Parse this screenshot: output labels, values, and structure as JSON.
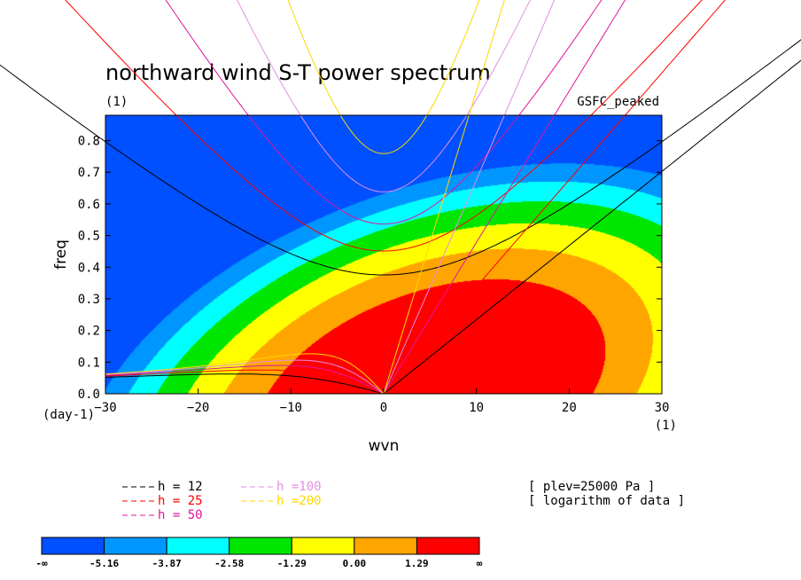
{
  "chart_data": {
    "type": "heatmap",
    "title": "northward wind S-T power spectrum",
    "subtitle_left": "(1)",
    "subtitle_right": "GSFC_peaked",
    "xlabel": "wvn",
    "ylabel": "freq",
    "x_unit": "(1)",
    "y_unit": "(day-1)",
    "xlim": [
      -30,
      30
    ],
    "ylim": [
      0,
      0.88
    ],
    "x_ticks": [
      -30,
      -20,
      -10,
      0,
      10,
      20,
      30
    ],
    "y_ticks": [
      0.0,
      0.1,
      0.2,
      0.3,
      0.4,
      0.5,
      0.6,
      0.7,
      0.8
    ],
    "contour_levels": [
      -5.16,
      -3.87,
      -2.58,
      -1.29,
      0.0,
      1.29
    ],
    "colorbar": {
      "labels": [
        "-∞",
        "-5.16",
        "-3.87",
        "-2.58",
        "-1.29",
        "0.00",
        "1.29",
        "∞"
      ],
      "colors": [
        "#0050ff",
        "#0096ff",
        "#00ffff",
        "#00e600",
        "#ffff00",
        "#ffa500",
        "#ff0000"
      ]
    },
    "field_model": {
      "peak_value": 3.4,
      "peak_wavenumber": 5,
      "peak_freq": 0.0,
      "wavenumber_scale": 16,
      "freq_scale": 0.33,
      "tilt": 0.9
    },
    "dispersion_curves": [
      {
        "h": 12,
        "label": "h = 12",
        "color": "#000000"
      },
      {
        "h": 25,
        "label": "h = 25",
        "color": "#ff0000"
      },
      {
        "h": 50,
        "label": "h = 50",
        "color": "#e0149e"
      },
      {
        "h": 100,
        "label": "h =100",
        "color": "#e38ee3"
      },
      {
        "h": 200,
        "label": "h =200",
        "color": "#ffd700"
      }
    ],
    "annotations": [
      "[ plev=25000 Pa ]",
      "[ logarithm of data ]"
    ]
  }
}
